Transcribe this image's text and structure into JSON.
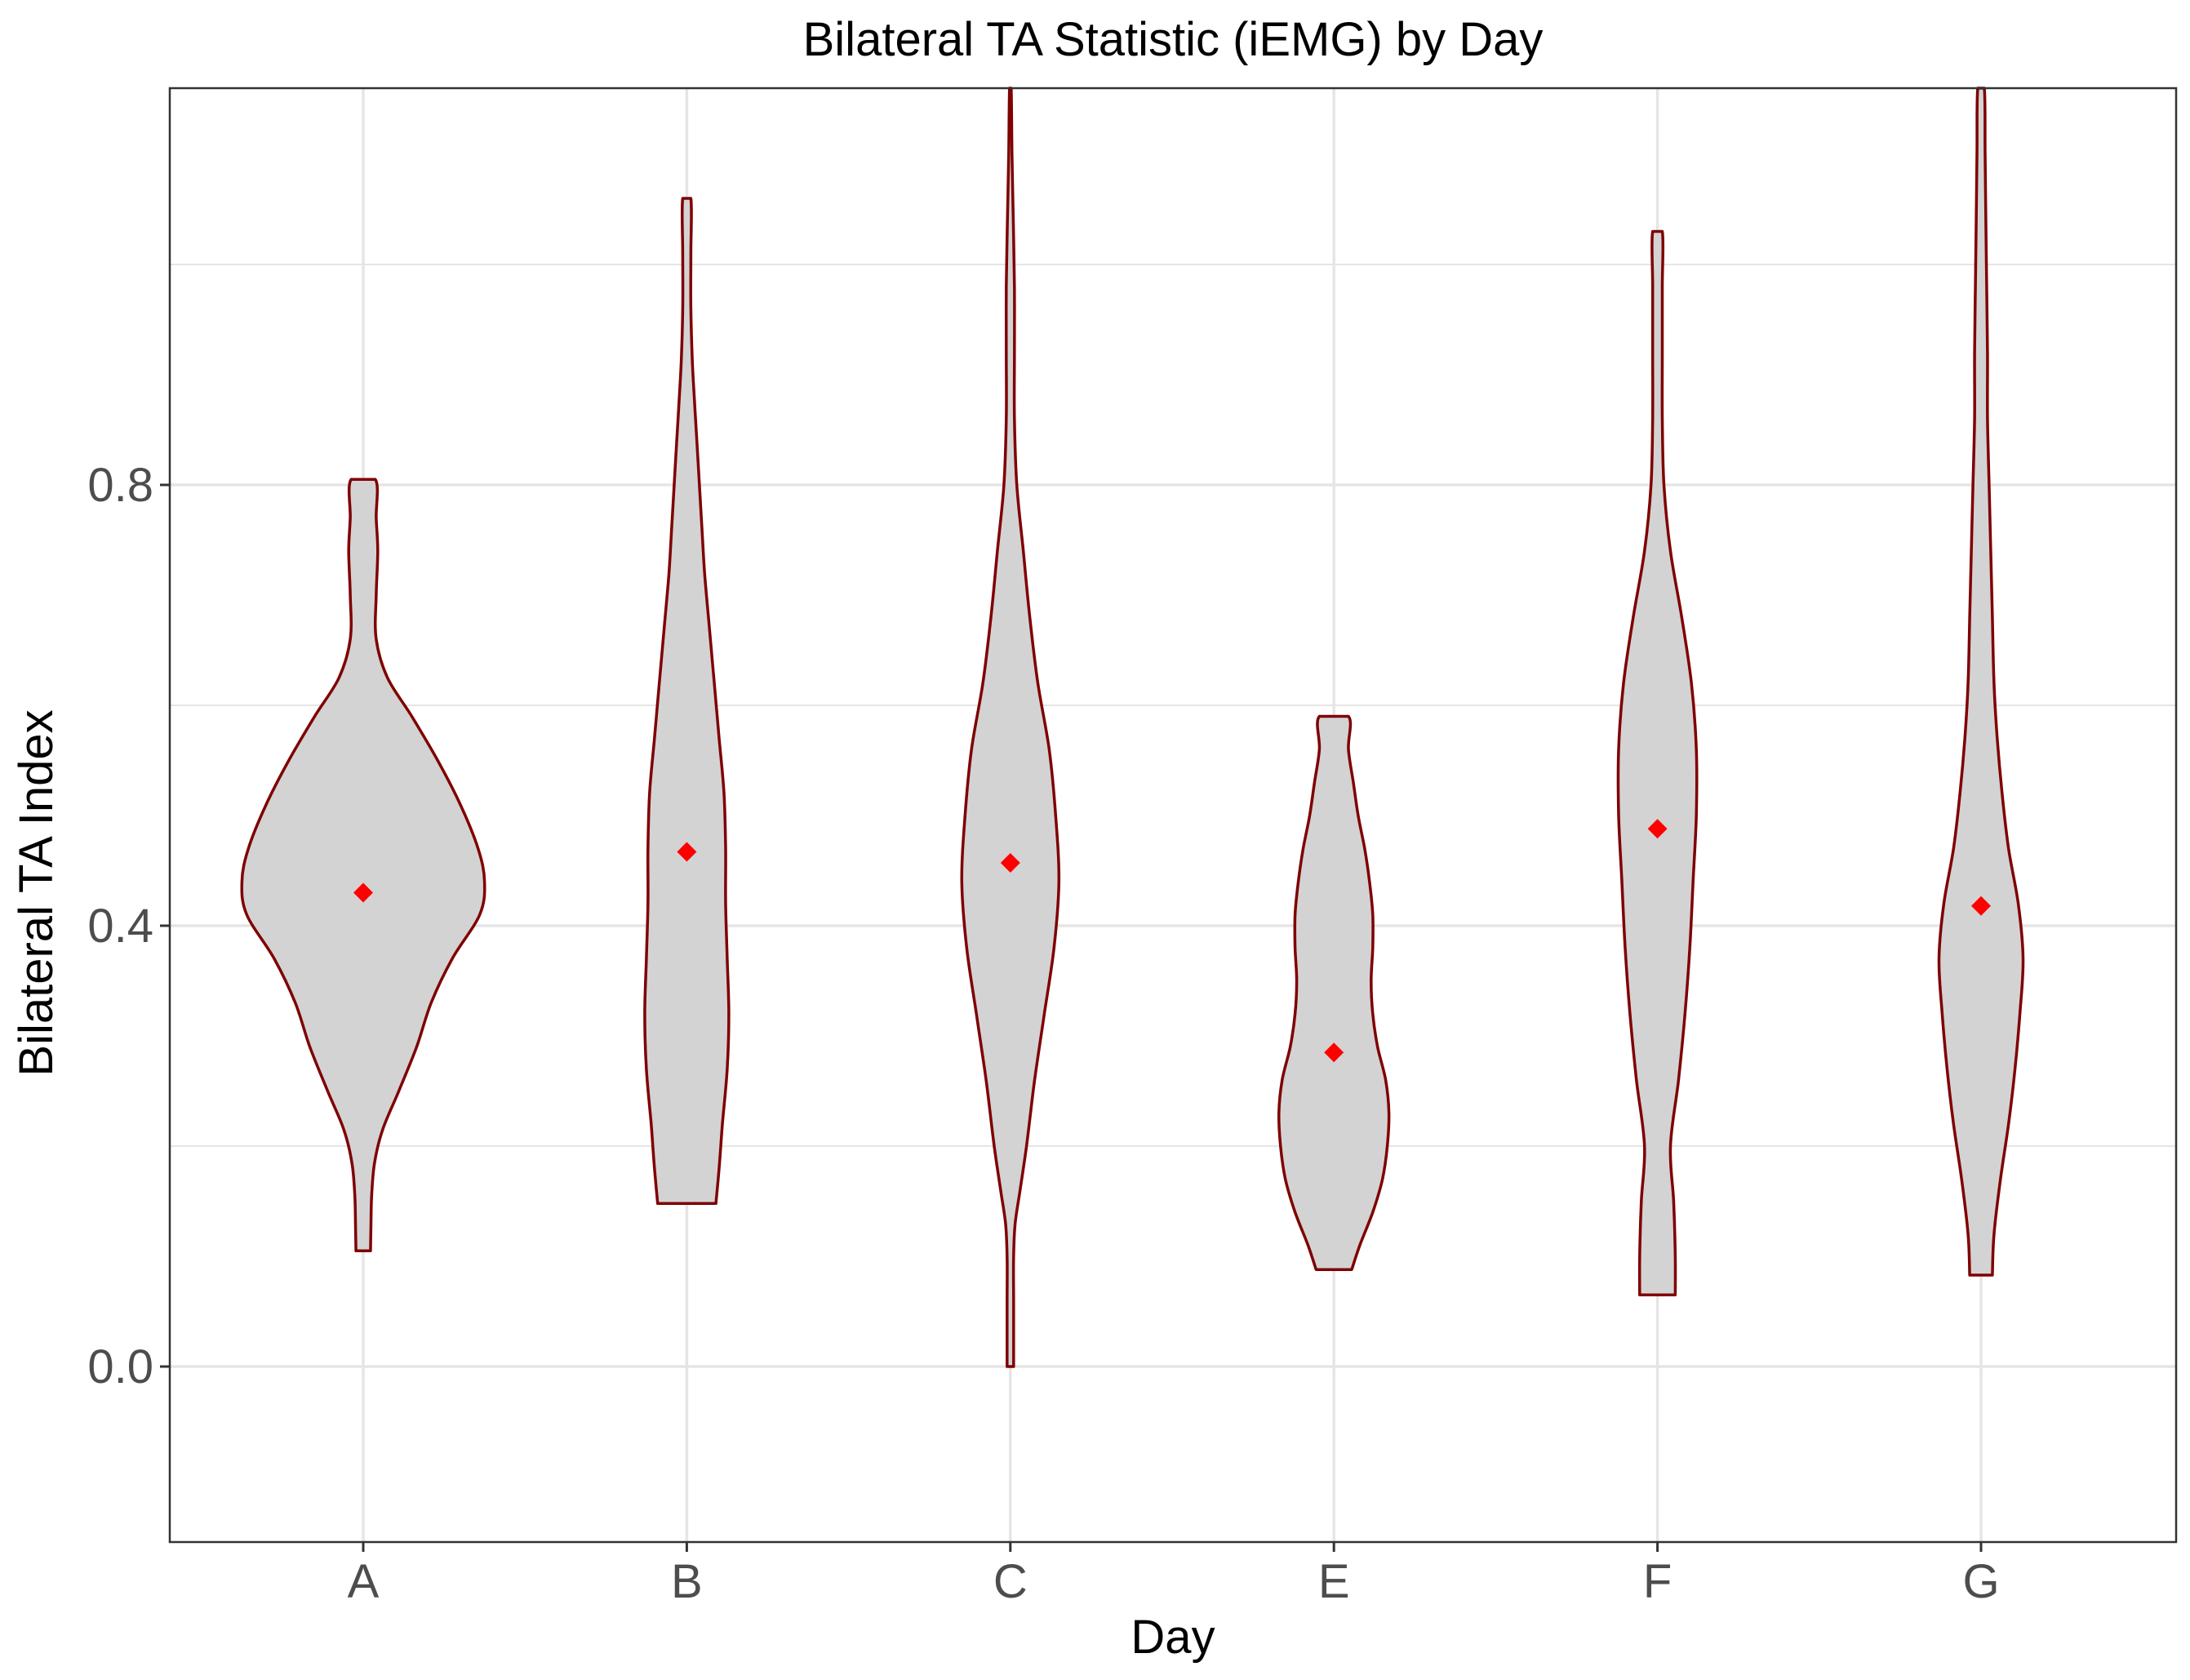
{
  "chart_data": {
    "type": "violin",
    "title": "Bilateral TA Statistic (iEMG) by Day",
    "xlabel": "Day",
    "ylabel": "Bilateral TA Index",
    "categories": [
      "A",
      "B",
      "C",
      "E",
      "F",
      "G"
    ],
    "ylim": [
      -0.16,
      1.16
    ],
    "yticks": [
      0.0,
      0.4,
      0.8
    ],
    "ytick_labels": [
      "0.0",
      "0.4",
      "0.8"
    ],
    "grid": true,
    "legend": "none",
    "colors": {
      "fill": "#d3d3d3",
      "outline": "#7f0000",
      "mean_marker": "#ff0000",
      "grid": "#e5e5e5",
      "panel_border": "#333333"
    },
    "max_halfwidth": 0.44,
    "means": [
      0.43,
      0.467,
      0.457,
      0.285,
      0.488,
      0.418
    ],
    "violins": [
      {
        "category": "A",
        "min": 0.105,
        "max": 0.805,
        "profile": [
          [
            0.105,
            0.045
          ],
          [
            0.13,
            0.048
          ],
          [
            0.155,
            0.052
          ],
          [
            0.185,
            0.07
          ],
          [
            0.215,
            0.12
          ],
          [
            0.25,
            0.22
          ],
          [
            0.29,
            0.33
          ],
          [
            0.33,
            0.42
          ],
          [
            0.37,
            0.55
          ],
          [
            0.41,
            0.72
          ],
          [
            0.44,
            0.75
          ],
          [
            0.47,
            0.71
          ],
          [
            0.51,
            0.6
          ],
          [
            0.55,
            0.46
          ],
          [
            0.59,
            0.3
          ],
          [
            0.625,
            0.15
          ],
          [
            0.66,
            0.08
          ],
          [
            0.7,
            0.08
          ],
          [
            0.74,
            0.09
          ],
          [
            0.77,
            0.08
          ],
          [
            0.805,
            0.075
          ]
        ]
      },
      {
        "category": "B",
        "min": 0.148,
        "max": 1.06,
        "profile": [
          [
            0.148,
            0.18
          ],
          [
            0.18,
            0.2
          ],
          [
            0.22,
            0.22
          ],
          [
            0.27,
            0.25
          ],
          [
            0.32,
            0.26
          ],
          [
            0.37,
            0.25
          ],
          [
            0.42,
            0.24
          ],
          [
            0.47,
            0.24
          ],
          [
            0.52,
            0.23
          ],
          [
            0.57,
            0.2
          ],
          [
            0.62,
            0.17
          ],
          [
            0.67,
            0.14
          ],
          [
            0.72,
            0.11
          ],
          [
            0.77,
            0.09
          ],
          [
            0.82,
            0.07
          ],
          [
            0.87,
            0.05
          ],
          [
            0.91,
            0.035
          ],
          [
            0.96,
            0.025
          ],
          [
            1.01,
            0.025
          ],
          [
            1.06,
            0.025
          ]
        ]
      },
      {
        "category": "C",
        "min": 0.0,
        "max": 1.16,
        "profile": [
          [
            0.0,
            0.02
          ],
          [
            0.03,
            0.02
          ],
          [
            0.06,
            0.02
          ],
          [
            0.1,
            0.02
          ],
          [
            0.13,
            0.03
          ],
          [
            0.16,
            0.06
          ],
          [
            0.2,
            0.1
          ],
          [
            0.26,
            0.15
          ],
          [
            0.32,
            0.21
          ],
          [
            0.38,
            0.27
          ],
          [
            0.44,
            0.3
          ],
          [
            0.5,
            0.28
          ],
          [
            0.56,
            0.24
          ],
          [
            0.62,
            0.17
          ],
          [
            0.68,
            0.12
          ],
          [
            0.74,
            0.08
          ],
          [
            0.8,
            0.04
          ],
          [
            0.86,
            0.025
          ],
          [
            0.92,
            0.025
          ],
          [
            0.98,
            0.025
          ],
          [
            1.04,
            0.018
          ],
          [
            1.1,
            0.01
          ],
          [
            1.16,
            0.005
          ]
        ]
      },
      {
        "category": "E",
        "min": 0.088,
        "max": 0.59,
        "profile": [
          [
            0.088,
            0.11
          ],
          [
            0.11,
            0.16
          ],
          [
            0.14,
            0.24
          ],
          [
            0.17,
            0.3
          ],
          [
            0.2,
            0.33
          ],
          [
            0.23,
            0.34
          ],
          [
            0.26,
            0.32
          ],
          [
            0.29,
            0.27
          ],
          [
            0.32,
            0.24
          ],
          [
            0.35,
            0.23
          ],
          [
            0.38,
            0.24
          ],
          [
            0.41,
            0.24
          ],
          [
            0.44,
            0.22
          ],
          [
            0.47,
            0.19
          ],
          [
            0.5,
            0.15
          ],
          [
            0.53,
            0.12
          ],
          [
            0.56,
            0.09
          ],
          [
            0.59,
            0.09
          ]
        ]
      },
      {
        "category": "F",
        "min": 0.065,
        "max": 1.03,
        "profile": [
          [
            0.065,
            0.11
          ],
          [
            0.1,
            0.11
          ],
          [
            0.15,
            0.1
          ],
          [
            0.2,
            0.08
          ],
          [
            0.26,
            0.13
          ],
          [
            0.32,
            0.17
          ],
          [
            0.38,
            0.2
          ],
          [
            0.44,
            0.22
          ],
          [
            0.5,
            0.24
          ],
          [
            0.56,
            0.24
          ],
          [
            0.62,
            0.21
          ],
          [
            0.68,
            0.15
          ],
          [
            0.74,
            0.08
          ],
          [
            0.8,
            0.04
          ],
          [
            0.86,
            0.03
          ],
          [
            0.92,
            0.03
          ],
          [
            0.98,
            0.03
          ],
          [
            1.03,
            0.03
          ]
        ]
      },
      {
        "category": "G",
        "min": 0.083,
        "max": 1.16,
        "profile": [
          [
            0.083,
            0.07
          ],
          [
            0.12,
            0.08
          ],
          [
            0.17,
            0.12
          ],
          [
            0.22,
            0.17
          ],
          [
            0.27,
            0.21
          ],
          [
            0.32,
            0.24
          ],
          [
            0.37,
            0.26
          ],
          [
            0.42,
            0.23
          ],
          [
            0.47,
            0.17
          ],
          [
            0.52,
            0.13
          ],
          [
            0.57,
            0.1
          ],
          [
            0.62,
            0.08
          ],
          [
            0.68,
            0.07
          ],
          [
            0.74,
            0.06
          ],
          [
            0.8,
            0.05
          ],
          [
            0.86,
            0.04
          ],
          [
            0.92,
            0.04
          ],
          [
            0.98,
            0.035
          ],
          [
            1.04,
            0.03
          ],
          [
            1.1,
            0.025
          ],
          [
            1.16,
            0.02
          ]
        ]
      }
    ]
  }
}
